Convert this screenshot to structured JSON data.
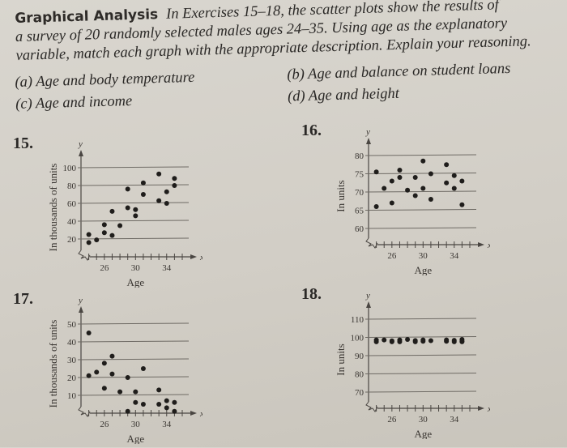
{
  "header": {
    "title": "Graphical Analysis",
    "lines": [
      "In Exercises 15–18, the scatter plots show the results of",
      "a survey of 20 randomly selected males ages 24–35. Using age as the explanatory",
      "variable, match each graph with the appropriate description. Explain your reasoning."
    ]
  },
  "options": {
    "a": "(a) Age and body temperature",
    "b": "(b) Age and balance on student loans",
    "c": "(c) Age and income",
    "d": "(d) Age and height"
  },
  "plots": {
    "p15": {
      "number": "15.",
      "ylabel": "In thousands of units",
      "xlabel": "Age"
    },
    "p16": {
      "number": "16.",
      "ylabel": "In units",
      "xlabel": "Age"
    },
    "p17": {
      "number": "17.",
      "ylabel": "In thousands of units",
      "xlabel": "Age"
    },
    "p18": {
      "number": "18.",
      "ylabel": "In units",
      "xlabel": "Age"
    }
  },
  "chart_data": [
    {
      "type": "scatter",
      "title": "15.",
      "xlabel": "Age",
      "ylabel": "In thousands of units",
      "xticks": [
        26,
        30,
        34
      ],
      "yticks": [
        20,
        40,
        60,
        80,
        100
      ],
      "xlim": [
        23,
        36
      ],
      "ylim": [
        0,
        105
      ],
      "points": [
        [
          24,
          16
        ],
        [
          24,
          25
        ],
        [
          25,
          19
        ],
        [
          26,
          27
        ],
        [
          26,
          36
        ],
        [
          27,
          24
        ],
        [
          27,
          51
        ],
        [
          28,
          35
        ],
        [
          29,
          55
        ],
        [
          29,
          76
        ],
        [
          30,
          53
        ],
        [
          30,
          46
        ],
        [
          31,
          70
        ],
        [
          31,
          83
        ],
        [
          33,
          93
        ],
        [
          33,
          63
        ],
        [
          34,
          60
        ],
        [
          34,
          73
        ],
        [
          35,
          88
        ],
        [
          35,
          80
        ]
      ]
    },
    {
      "type": "scatter",
      "title": "16.",
      "xlabel": "Age",
      "ylabel": "In units",
      "xticks": [
        26,
        30,
        34
      ],
      "yticks": [
        60,
        65,
        70,
        75,
        80
      ],
      "xlim": [
        23,
        36
      ],
      "ylim": [
        58,
        82
      ],
      "points": [
        [
          24,
          75.5
        ],
        [
          24,
          66
        ],
        [
          25,
          71
        ],
        [
          26,
          73
        ],
        [
          26,
          67
        ],
        [
          27,
          76
        ],
        [
          27,
          74
        ],
        [
          28,
          70.5
        ],
        [
          29,
          74
        ],
        [
          29,
          69
        ],
        [
          30,
          78.5
        ],
        [
          30,
          71
        ],
        [
          31,
          75
        ],
        [
          31,
          68
        ],
        [
          33,
          77.5
        ],
        [
          33,
          72.5
        ],
        [
          34,
          74.5
        ],
        [
          34,
          71
        ],
        [
          35,
          73
        ],
        [
          35,
          66.5
        ]
      ]
    },
    {
      "type": "scatter",
      "title": "17.",
      "xlabel": "Age",
      "ylabel": "In thousands of units",
      "xticks": [
        26,
        30,
        34
      ],
      "yticks": [
        10,
        20,
        30,
        40,
        50
      ],
      "xlim": [
        23,
        36
      ],
      "ylim": [
        0,
        55
      ],
      "points": [
        [
          24,
          45
        ],
        [
          24,
          21
        ],
        [
          25,
          23
        ],
        [
          26,
          28
        ],
        [
          26,
          14
        ],
        [
          27,
          32
        ],
        [
          27,
          22
        ],
        [
          28,
          12
        ],
        [
          29,
          20
        ],
        [
          29,
          1
        ],
        [
          30,
          12
        ],
        [
          30,
          6
        ],
        [
          31,
          25
        ],
        [
          31,
          5
        ],
        [
          33,
          13
        ],
        [
          33,
          5
        ],
        [
          34,
          7
        ],
        [
          34,
          3
        ],
        [
          35,
          6
        ],
        [
          35,
          1
        ]
      ]
    },
    {
      "type": "scatter",
      "title": "18.",
      "xlabel": "Age",
      "ylabel": "In units",
      "xticks": [
        26,
        30,
        34
      ],
      "yticks": [
        70,
        80,
        90,
        100,
        110
      ],
      "xlim": [
        23,
        36
      ],
      "ylim": [
        65,
        115
      ],
      "points": [
        [
          24,
          98.6
        ],
        [
          24,
          97.6
        ],
        [
          25,
          98.6
        ],
        [
          26,
          98.1
        ],
        [
          26,
          97.6
        ],
        [
          27,
          98.6
        ],
        [
          27,
          97.6
        ],
        [
          28,
          98.9
        ],
        [
          29,
          98.3
        ],
        [
          29,
          97.6
        ],
        [
          30,
          98.6
        ],
        [
          30,
          97.9
        ],
        [
          31,
          98.2
        ],
        [
          33,
          98.6
        ],
        [
          33,
          97.9
        ],
        [
          34,
          98.4
        ],
        [
          34,
          97.6
        ],
        [
          35,
          98.9
        ],
        [
          35,
          98.0
        ],
        [
          35,
          97.6
        ]
      ]
    }
  ]
}
